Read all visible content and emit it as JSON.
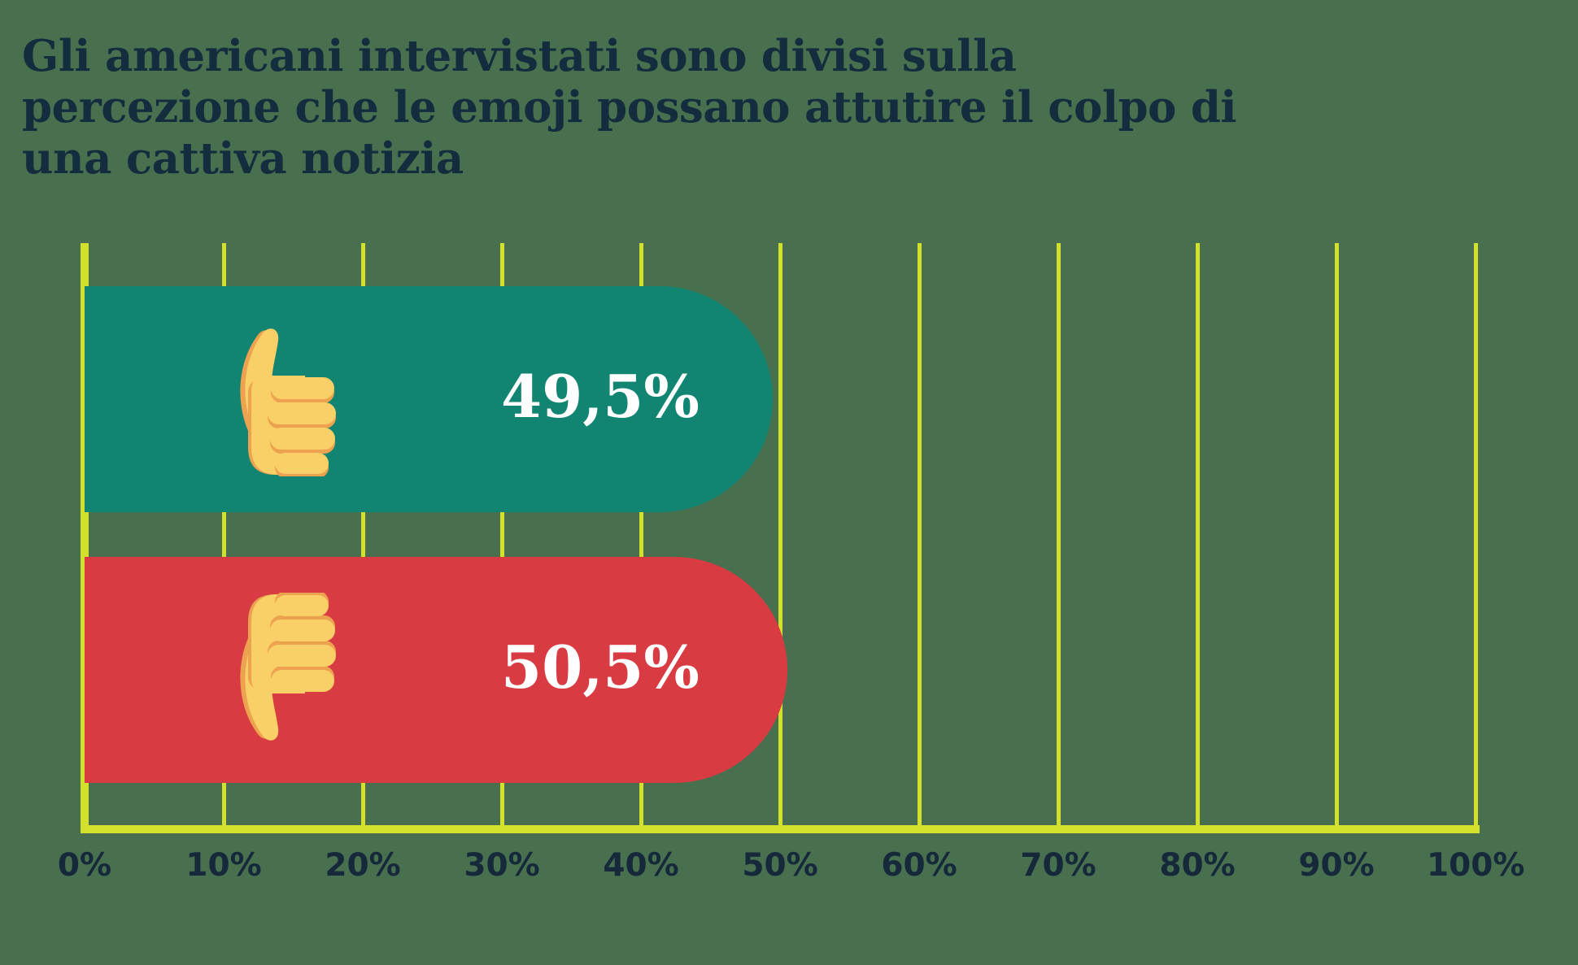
{
  "title": "Gli americani intervistati sono divisi sulla percezione che le emoji possano attutire il colpo di una cattiva notizia",
  "title_lines": [
    "Gli americani intervistati sono divisi sulla",
    "percezione che le emoji possano attutire il colpo di",
    "una cattiva notizia"
  ],
  "chart_data": {
    "type": "bar",
    "orientation": "horizontal",
    "title": "Gli americani intervistati sono divisi sulla percezione che le emoji possano attutire il colpo di una cattiva notizia",
    "categories": [
      "thumbs-up",
      "thumbs-down"
    ],
    "values": [
      49.5,
      50.5
    ],
    "value_labels": [
      "49,5%",
      "50,5%"
    ],
    "x_tick_labels": [
      "0%",
      "10%",
      "20%",
      "30%",
      "40%",
      "50%",
      "60%",
      "70%",
      "80%",
      "90%",
      "100%"
    ],
    "xlim": [
      0,
      100
    ],
    "grid": "vertical-gridlines",
    "legend": "none",
    "bar_colors": [
      "#118571",
      "#D93B43"
    ],
    "bar_icons": [
      "thumbs-up-emoji",
      "thumbs-down-emoji"
    ]
  },
  "colors": {
    "background": "#48704F",
    "bar_positive": "#118571",
    "bar_negative": "#D93B43",
    "gridline": "#D3E02C",
    "title_text": "#132C3E",
    "tick_text": "#15293B",
    "value_text": "#FFFFFF",
    "emoji_skin": "#F9CF67",
    "emoji_shade": "#ECA24E"
  }
}
